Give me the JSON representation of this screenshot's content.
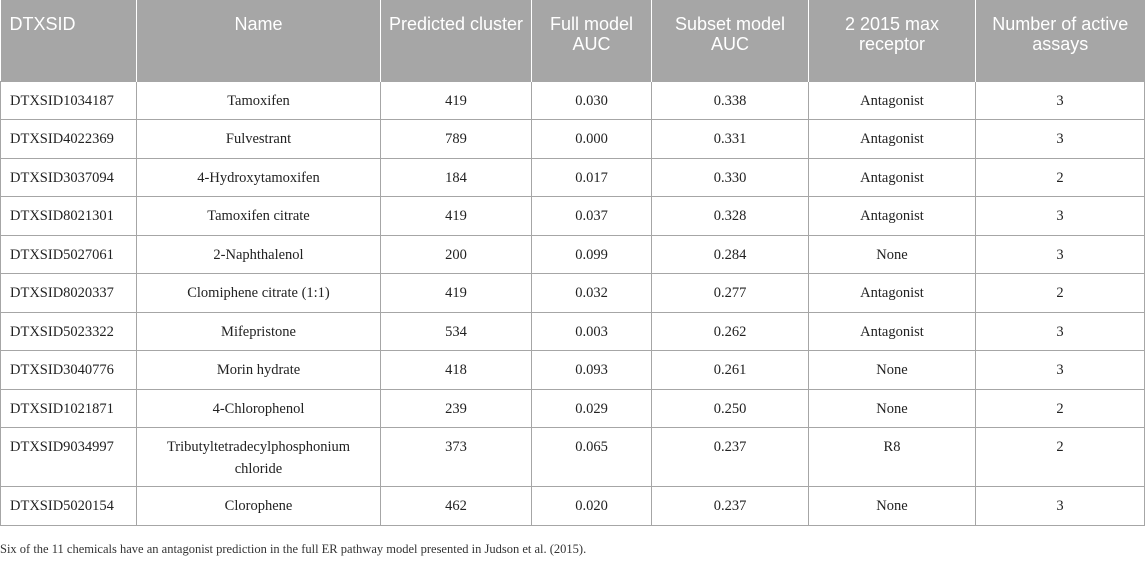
{
  "table": {
    "headers": [
      "DTXSID",
      "Name",
      "Predicted cluster",
      "Full model AUC",
      "Subset model AUC",
      "2 2015 max receptor",
      "Number of active assays"
    ],
    "rows": [
      [
        "DTXSID1034187",
        "Tamoxifen",
        "419",
        "0.030",
        "0.338",
        "Antagonist",
        "3"
      ],
      [
        "DTXSID4022369",
        "Fulvestrant",
        "789",
        "0.000",
        "0.331",
        "Antagonist",
        "3"
      ],
      [
        "DTXSID3037094",
        "4-Hydroxytamoxifen",
        "184",
        "0.017",
        "0.330",
        "Antagonist",
        "2"
      ],
      [
        "DTXSID8021301",
        "Tamoxifen citrate",
        "419",
        "0.037",
        "0.328",
        "Antagonist",
        "3"
      ],
      [
        "DTXSID5027061",
        "2-Naphthalenol",
        "200",
        "0.099",
        "0.284",
        "None",
        "3"
      ],
      [
        "DTXSID8020337",
        "Clomiphene citrate (1:1)",
        "419",
        "0.032",
        "0.277",
        "Antagonist",
        "2"
      ],
      [
        "DTXSID5023322",
        "Mifepristone",
        "534",
        "0.003",
        "0.262",
        "Antagonist",
        "3"
      ],
      [
        "DTXSID3040776",
        "Morin hydrate",
        "418",
        "0.093",
        "0.261",
        "None",
        "3"
      ],
      [
        "DTXSID1021871",
        "4-Chlorophenol",
        "239",
        "0.029",
        "0.250",
        "None",
        "2"
      ],
      [
        "DTXSID9034997",
        "Tributyltetradecylphosphonium chloride",
        "373",
        "0.065",
        "0.237",
        "R8",
        "2"
      ],
      [
        "DTXSID5020154",
        "Clorophene",
        "462",
        "0.020",
        "0.237",
        "None",
        "3"
      ]
    ]
  },
  "footnote": "Six of the 11 chemicals have an antagonist prediction in the full ER pathway model presented in Judson et al. (2015).",
  "colors": {
    "header_background": "#a6a6a6",
    "header_text": "#ffffff",
    "grid_lines": "#a6a6a6"
  }
}
